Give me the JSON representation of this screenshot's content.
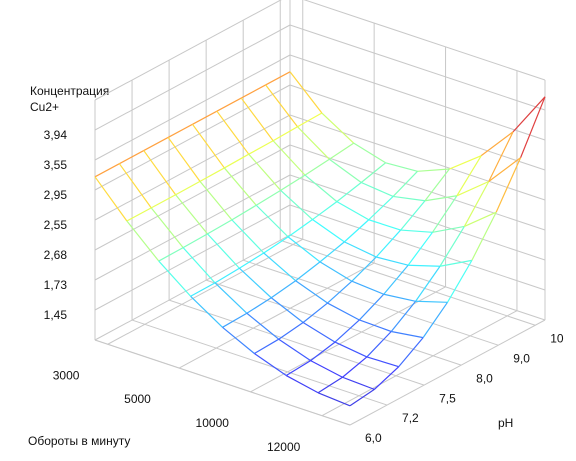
{
  "chart_data": {
    "type": "surface3d",
    "zlabel": [
      "Концентрация",
      "Cu2+"
    ],
    "xlabel": "Обороты в минуту",
    "ylabel": "pH",
    "xcategories": [
      "3000",
      "5000",
      "10000",
      "12000"
    ],
    "ycategories": [
      "6,0",
      "7,2",
      "7,5",
      "8,0",
      "9,0",
      "10"
    ],
    "zcategories": [
      "1,45",
      "1,73",
      "2,68",
      "2,55",
      "2,95",
      "3,55",
      "3,94"
    ],
    "zlim": [
      0,
      8
    ],
    "colormap": "jet",
    "z": [
      [
        5.44,
        5.44,
        5.44,
        5.44,
        5.44,
        5.44,
        5.44,
        5.44,
        5.44
      ],
      [
        4.32,
        4.32,
        4.32,
        4.33,
        4.34,
        4.36,
        4.37,
        4.4,
        4.42
      ],
      [
        3.34,
        3.35,
        3.37,
        3.4,
        3.45,
        3.51,
        3.58,
        3.67,
        3.77
      ],
      [
        2.52,
        2.53,
        2.58,
        2.65,
        2.75,
        2.89,
        3.05,
        3.25,
        3.47
      ],
      [
        1.84,
        1.87,
        1.95,
        2.08,
        2.27,
        2.5,
        2.8,
        3.14,
        3.54
      ],
      [
        1.32,
        1.36,
        1.48,
        1.69,
        1.98,
        2.35,
        2.81,
        3.35,
        3.97
      ],
      [
        0.94,
        1.0,
        1.18,
        1.48,
        1.9,
        2.43,
        3.09,
        3.87,
        4.77
      ],
      [
        0.72,
        0.8,
        1.04,
        1.45,
        2.02,
        2.75,
        3.64,
        4.7,
        5.92
      ],
      [
        0.64,
        0.75,
        1.07,
        1.6,
        2.34,
        3.3,
        4.47,
        5.85,
        7.44
      ]
    ]
  }
}
